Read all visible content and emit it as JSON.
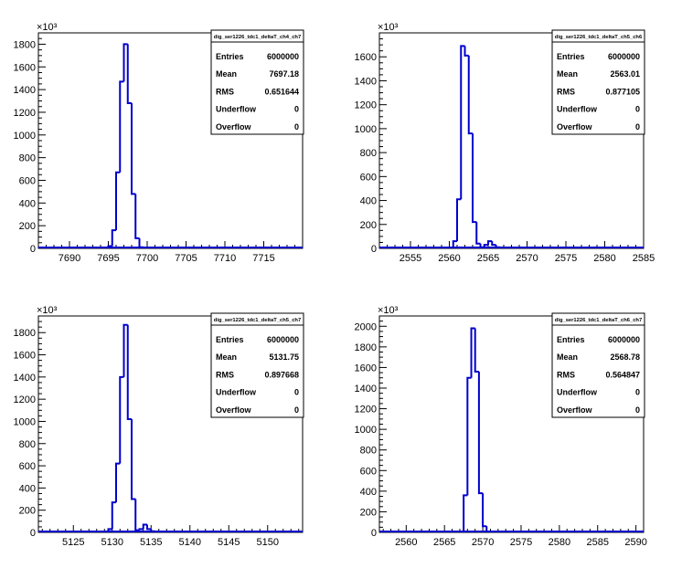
{
  "colors": {
    "histogram": "#0000cc",
    "frame": "#000000",
    "background": "#ffffff"
  },
  "chart_data": [
    {
      "type": "bar",
      "style": "step-histogram",
      "title": "",
      "xlabel": "",
      "ylabel": "",
      "y_exponent_label": "×10³",
      "xlim": [
        7686,
        7720
      ],
      "ylim": [
        0,
        1900
      ],
      "x_ticks": [
        7690,
        7695,
        7700,
        7705,
        7710,
        7715
      ],
      "y_ticks": [
        0,
        200,
        400,
        600,
        800,
        1000,
        1200,
        1400,
        1600,
        1800
      ],
      "bin_width": 0.5,
      "bin_edges_start": 7695,
      "values": [
        20,
        160,
        670,
        1470,
        1800,
        1280,
        480,
        90,
        10
      ],
      "stats": {
        "name": "dig_ser1226_tdc1_deltaT_ch4_ch7",
        "rows": [
          {
            "label": "Entries",
            "value": "6000000"
          },
          {
            "label": "Mean",
            "value": "7697.18"
          },
          {
            "label": "RMS",
            "value": "0.651644"
          },
          {
            "label": "Underflow",
            "value": "0"
          },
          {
            "label": "Overflow",
            "value": "0"
          }
        ]
      }
    },
    {
      "type": "bar",
      "style": "step-histogram",
      "title": "",
      "xlabel": "",
      "ylabel": "",
      "y_exponent_label": "×10³",
      "xlim": [
        2551,
        2585
      ],
      "ylim": [
        0,
        1800
      ],
      "x_ticks": [
        2555,
        2560,
        2565,
        2570,
        2575,
        2580,
        2585
      ],
      "y_ticks": [
        0,
        200,
        400,
        600,
        800,
        1000,
        1200,
        1400,
        1600
      ],
      "bin_width": 0.5,
      "bin_edges_start": 2560.5,
      "values": [
        60,
        410,
        1690,
        1610,
        960,
        220,
        40,
        10,
        30,
        60,
        30,
        10
      ],
      "stats": {
        "name": "dig_ser1226_tdc1_deltaT_ch5_ch6",
        "rows": [
          {
            "label": "Entries",
            "value": "6000000"
          },
          {
            "label": "Mean",
            "value": "2563.01"
          },
          {
            "label": "RMS",
            "value": "0.877105"
          },
          {
            "label": "Underflow",
            "value": "0"
          },
          {
            "label": "Overflow",
            "value": "0"
          }
        ]
      }
    },
    {
      "type": "bar",
      "style": "step-histogram",
      "title": "",
      "xlabel": "",
      "ylabel": "",
      "y_exponent_label": "×10³",
      "xlim": [
        5120.5,
        5154.5
      ],
      "ylim": [
        0,
        1950
      ],
      "x_ticks": [
        5125,
        5130,
        5135,
        5140,
        5145,
        5150
      ],
      "y_ticks": [
        0,
        200,
        400,
        600,
        800,
        1000,
        1200,
        1400,
        1600,
        1800
      ],
      "bin_width": 0.5,
      "bin_edges_start": 5129.5,
      "values": [
        30,
        270,
        620,
        1400,
        1870,
        1020,
        300,
        20,
        30,
        70,
        30,
        10
      ],
      "stats": {
        "name": "dig_ser1226_tdc1_deltaT_ch5_ch7",
        "rows": [
          {
            "label": "Entries",
            "value": "6000000"
          },
          {
            "label": "Mean",
            "value": "5131.75"
          },
          {
            "label": "RMS",
            "value": "0.897668"
          },
          {
            "label": "Underflow",
            "value": "0"
          },
          {
            "label": "Overflow",
            "value": "0"
          }
        ]
      }
    },
    {
      "type": "bar",
      "style": "step-histogram",
      "title": "",
      "xlabel": "",
      "ylabel": "",
      "y_exponent_label": "×10³",
      "xlim": [
        2556.5,
        2591
      ],
      "ylim": [
        0,
        2100
      ],
      "x_ticks": [
        2560,
        2565,
        2570,
        2575,
        2580,
        2585,
        2590
      ],
      "y_ticks": [
        0,
        200,
        400,
        600,
        800,
        1000,
        1200,
        1400,
        1600,
        1800,
        2000
      ],
      "bin_width": 0.5,
      "bin_edges_start": 2567.5,
      "values": [
        360,
        1500,
        1980,
        1560,
        380,
        60
      ],
      "stats": {
        "name": "dig_ser1226_tdc1_deltaT_ch6_ch7",
        "rows": [
          {
            "label": "Entries",
            "value": "6000000"
          },
          {
            "label": "Mean",
            "value": "2568.78"
          },
          {
            "label": "RMS",
            "value": "0.564847"
          },
          {
            "label": "Underflow",
            "value": "0"
          },
          {
            "label": "Overflow",
            "value": "0"
          }
        ]
      }
    }
  ]
}
